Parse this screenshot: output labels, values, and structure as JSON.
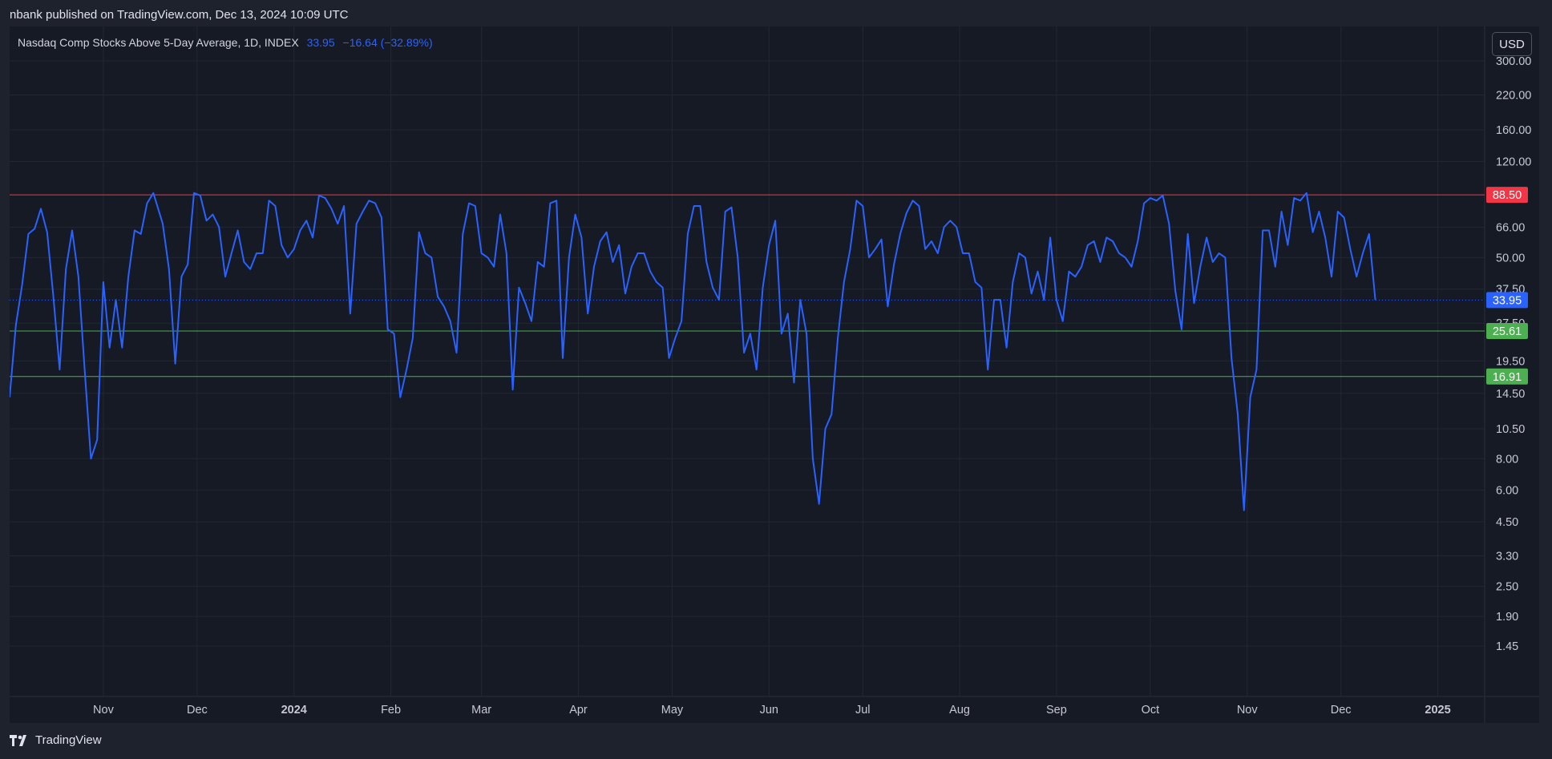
{
  "header": {
    "publish_text": "nbank published on TradingView.com, Dec 13, 2024 10:09 UTC"
  },
  "legend": {
    "symbol": "Nasdaq Comp Stocks Above 5-Day Average, 1D, INDEX",
    "last": "33.95",
    "change": "−16.64 (−32.89%)"
  },
  "currency": "USD",
  "footer": {
    "brand": "TradingView"
  },
  "colors": {
    "line": "#2962ff",
    "upper_level": "#f23645",
    "lower_level": "#4caf50",
    "grid": "#232734",
    "background": "#161a25"
  },
  "chart_data": {
    "type": "line",
    "title": "Nasdaq Comp Stocks Above 5-Day Average, 1D, INDEX",
    "y_scale": "log",
    "ylim": [
      1.1,
      360
    ],
    "xlim": [
      "2023-10-02",
      "2025-01-16"
    ],
    "y_ticks": [
      "300.00",
      "220.00",
      "160.00",
      "120.00",
      "88.50",
      "66.00",
      "50.00",
      "37.50",
      "27.50",
      "19.50",
      "14.50",
      "10.50",
      "8.00",
      "6.00",
      "4.50",
      "3.30",
      "2.50",
      "1.90",
      "1.45"
    ],
    "x_ticks": [
      {
        "date": "2023-11-01",
        "label": "Nov"
      },
      {
        "date": "2023-12-01",
        "label": "Dec"
      },
      {
        "date": "2024-01-01",
        "label": "2024"
      },
      {
        "date": "2024-02-01",
        "label": "Feb"
      },
      {
        "date": "2024-03-01",
        "label": "Mar"
      },
      {
        "date": "2024-04-01",
        "label": "Apr"
      },
      {
        "date": "2024-05-01",
        "label": "May"
      },
      {
        "date": "2024-06-01",
        "label": "Jun"
      },
      {
        "date": "2024-07-01",
        "label": "Jul"
      },
      {
        "date": "2024-08-01",
        "label": "Aug"
      },
      {
        "date": "2024-09-01",
        "label": "Sep"
      },
      {
        "date": "2024-10-01",
        "label": "Oct"
      },
      {
        "date": "2024-11-01",
        "label": "Nov"
      },
      {
        "date": "2024-12-01",
        "label": "Dec"
      },
      {
        "date": "2025-01-01",
        "label": "2025"
      }
    ],
    "horizontal_levels": [
      {
        "value": 88.5,
        "label": "88.50",
        "color": "#f23645"
      },
      {
        "value": 25.61,
        "label": "25.61",
        "color": "#4caf50"
      },
      {
        "value": 16.91,
        "label": "16.91",
        "color": "#4caf50"
      }
    ],
    "last_value": {
      "value": 33.95,
      "label": "33.95",
      "color": "#2962ff"
    },
    "series": [
      {
        "values": [
          [
            "2023-10-02",
            14
          ],
          [
            "2023-10-04",
            27
          ],
          [
            "2023-10-06",
            39
          ],
          [
            "2023-10-08",
            62
          ],
          [
            "2023-10-10",
            65
          ],
          [
            "2023-10-12",
            78
          ],
          [
            "2023-10-14",
            63
          ],
          [
            "2023-10-16",
            35
          ],
          [
            "2023-10-18",
            18
          ],
          [
            "2023-10-20",
            45
          ],
          [
            "2023-10-22",
            64
          ],
          [
            "2023-10-24",
            42
          ],
          [
            "2023-10-26",
            18
          ],
          [
            "2023-10-28",
            8.0
          ],
          [
            "2023-10-30",
            9.5
          ],
          [
            "2023-11-01",
            40
          ],
          [
            "2023-11-03",
            22
          ],
          [
            "2023-11-05",
            34
          ],
          [
            "2023-11-07",
            22
          ],
          [
            "2023-11-09",
            42
          ],
          [
            "2023-11-11",
            64
          ],
          [
            "2023-11-13",
            62
          ],
          [
            "2023-11-15",
            82
          ],
          [
            "2023-11-17",
            90
          ],
          [
            "2023-11-20",
            68
          ],
          [
            "2023-11-22",
            45
          ],
          [
            "2023-11-24",
            19
          ],
          [
            "2023-11-26",
            42
          ],
          [
            "2023-11-28",
            47
          ],
          [
            "2023-11-30",
            90
          ],
          [
            "2023-12-02",
            88
          ],
          [
            "2023-12-04",
            70
          ],
          [
            "2023-12-06",
            74
          ],
          [
            "2023-12-08",
            66
          ],
          [
            "2023-12-10",
            42
          ],
          [
            "2023-12-12",
            52
          ],
          [
            "2023-12-14",
            64
          ],
          [
            "2023-12-16",
            48
          ],
          [
            "2023-12-18",
            45
          ],
          [
            "2023-12-20",
            52
          ],
          [
            "2023-12-22",
            52
          ],
          [
            "2023-12-24",
            84
          ],
          [
            "2023-12-26",
            80
          ],
          [
            "2023-12-28",
            56
          ],
          [
            "2023-12-30",
            50
          ],
          [
            "2024-01-01",
            54
          ],
          [
            "2024-01-03",
            64
          ],
          [
            "2024-01-05",
            70
          ],
          [
            "2024-01-07",
            60
          ],
          [
            "2024-01-09",
            88
          ],
          [
            "2024-01-11",
            86
          ],
          [
            "2024-01-13",
            78
          ],
          [
            "2024-01-15",
            68
          ],
          [
            "2024-01-17",
            80
          ],
          [
            "2024-01-19",
            30
          ],
          [
            "2024-01-21",
            68
          ],
          [
            "2024-01-23",
            76
          ],
          [
            "2024-01-25",
            84
          ],
          [
            "2024-01-27",
            82
          ],
          [
            "2024-01-29",
            72
          ],
          [
            "2024-01-31",
            26
          ],
          [
            "2024-02-02",
            25
          ],
          [
            "2024-02-04",
            14
          ],
          [
            "2024-02-06",
            18
          ],
          [
            "2024-02-08",
            24
          ],
          [
            "2024-02-10",
            63
          ],
          [
            "2024-02-12",
            52
          ],
          [
            "2024-02-14",
            50
          ],
          [
            "2024-02-16",
            35
          ],
          [
            "2024-02-18",
            32
          ],
          [
            "2024-02-20",
            28
          ],
          [
            "2024-02-22",
            21
          ],
          [
            "2024-02-24",
            62
          ],
          [
            "2024-02-26",
            82
          ],
          [
            "2024-02-28",
            80
          ],
          [
            "2024-03-01",
            52
          ],
          [
            "2024-03-03",
            50
          ],
          [
            "2024-03-05",
            46
          ],
          [
            "2024-03-07",
            74
          ],
          [
            "2024-03-09",
            52
          ],
          [
            "2024-03-11",
            15
          ],
          [
            "2024-03-13",
            38
          ],
          [
            "2024-03-15",
            33
          ],
          [
            "2024-03-17",
            28
          ],
          [
            "2024-03-19",
            48
          ],
          [
            "2024-03-21",
            46
          ],
          [
            "2024-03-23",
            82
          ],
          [
            "2024-03-25",
            84
          ],
          [
            "2024-03-27",
            20
          ],
          [
            "2024-03-29",
            50
          ],
          [
            "2024-03-31",
            74
          ],
          [
            "2024-04-02",
            60
          ],
          [
            "2024-04-04",
            30
          ],
          [
            "2024-04-06",
            46
          ],
          [
            "2024-04-08",
            58
          ],
          [
            "2024-04-10",
            63
          ],
          [
            "2024-04-12",
            48
          ],
          [
            "2024-04-14",
            56
          ],
          [
            "2024-04-16",
            36
          ],
          [
            "2024-04-18",
            46
          ],
          [
            "2024-04-20",
            52
          ],
          [
            "2024-04-22",
            52
          ],
          [
            "2024-04-24",
            44
          ],
          [
            "2024-04-26",
            40
          ],
          [
            "2024-04-28",
            38
          ],
          [
            "2024-04-30",
            20
          ],
          [
            "2024-05-02",
            24
          ],
          [
            "2024-05-04",
            28
          ],
          [
            "2024-05-06",
            62
          ],
          [
            "2024-05-08",
            80
          ],
          [
            "2024-05-10",
            80
          ],
          [
            "2024-05-12",
            48
          ],
          [
            "2024-05-14",
            38
          ],
          [
            "2024-05-16",
            34
          ],
          [
            "2024-05-18",
            76
          ],
          [
            "2024-05-20",
            79
          ],
          [
            "2024-05-22",
            50
          ],
          [
            "2024-05-24",
            21
          ],
          [
            "2024-05-26",
            25
          ],
          [
            "2024-05-28",
            18
          ],
          [
            "2024-05-30",
            38
          ],
          [
            "2024-06-01",
            56
          ],
          [
            "2024-06-03",
            70
          ],
          [
            "2024-06-05",
            25
          ],
          [
            "2024-06-07",
            30
          ],
          [
            "2024-06-09",
            16
          ],
          [
            "2024-06-11",
            34
          ],
          [
            "2024-06-13",
            25
          ],
          [
            "2024-06-15",
            8
          ],
          [
            "2024-06-17",
            5.3
          ],
          [
            "2024-06-19",
            10.5
          ],
          [
            "2024-06-21",
            12
          ],
          [
            "2024-06-23",
            24
          ],
          [
            "2024-06-25",
            40
          ],
          [
            "2024-06-27",
            54
          ],
          [
            "2024-06-29",
            84
          ],
          [
            "2024-07-01",
            80
          ],
          [
            "2024-07-03",
            50
          ],
          [
            "2024-07-05",
            54
          ],
          [
            "2024-07-07",
            59
          ],
          [
            "2024-07-09",
            32
          ],
          [
            "2024-07-11",
            47
          ],
          [
            "2024-07-13",
            62
          ],
          [
            "2024-07-15",
            75
          ],
          [
            "2024-07-17",
            84
          ],
          [
            "2024-07-19",
            80
          ],
          [
            "2024-07-21",
            54
          ],
          [
            "2024-07-23",
            58
          ],
          [
            "2024-07-25",
            52
          ],
          [
            "2024-07-27",
            66
          ],
          [
            "2024-07-29",
            70
          ],
          [
            "2024-07-31",
            66
          ],
          [
            "2024-08-02",
            52
          ],
          [
            "2024-08-04",
            52
          ],
          [
            "2024-08-06",
            40
          ],
          [
            "2024-08-08",
            38
          ],
          [
            "2024-08-10",
            18
          ],
          [
            "2024-08-12",
            34
          ],
          [
            "2024-08-14",
            34
          ],
          [
            "2024-08-16",
            22
          ],
          [
            "2024-08-18",
            40
          ],
          [
            "2024-08-20",
            52
          ],
          [
            "2024-08-22",
            50
          ],
          [
            "2024-08-24",
            36
          ],
          [
            "2024-08-26",
            44
          ],
          [
            "2024-08-28",
            34
          ],
          [
            "2024-08-30",
            60
          ],
          [
            "2024-09-01",
            34
          ],
          [
            "2024-09-03",
            28
          ],
          [
            "2024-09-05",
            44
          ],
          [
            "2024-09-07",
            42
          ],
          [
            "2024-09-09",
            46
          ],
          [
            "2024-09-11",
            56
          ],
          [
            "2024-09-13",
            58
          ],
          [
            "2024-09-15",
            48
          ],
          [
            "2024-09-17",
            60
          ],
          [
            "2024-09-19",
            58
          ],
          [
            "2024-09-21",
            52
          ],
          [
            "2024-09-23",
            50
          ],
          [
            "2024-09-25",
            46
          ],
          [
            "2024-09-27",
            58
          ],
          [
            "2024-09-29",
            82
          ],
          [
            "2024-10-01",
            86
          ],
          [
            "2024-10-03",
            84
          ],
          [
            "2024-10-05",
            88
          ],
          [
            "2024-10-07",
            68
          ],
          [
            "2024-10-09",
            37
          ],
          [
            "2024-10-11",
            26
          ],
          [
            "2024-10-13",
            62
          ],
          [
            "2024-10-15",
            33
          ],
          [
            "2024-10-17",
            46
          ],
          [
            "2024-10-19",
            60
          ],
          [
            "2024-10-21",
            48
          ],
          [
            "2024-10-23",
            52
          ],
          [
            "2024-10-25",
            50
          ],
          [
            "2024-10-27",
            20
          ],
          [
            "2024-10-29",
            12
          ],
          [
            "2024-10-31",
            5.0
          ],
          [
            "2024-11-02",
            14
          ],
          [
            "2024-11-04",
            18
          ],
          [
            "2024-11-06",
            64
          ],
          [
            "2024-11-08",
            64
          ],
          [
            "2024-11-10",
            46
          ],
          [
            "2024-11-12",
            76
          ],
          [
            "2024-11-14",
            56
          ],
          [
            "2024-11-16",
            86
          ],
          [
            "2024-11-18",
            84
          ],
          [
            "2024-11-20",
            90
          ],
          [
            "2024-11-22",
            63
          ],
          [
            "2024-11-24",
            76
          ],
          [
            "2024-11-26",
            60
          ],
          [
            "2024-11-28",
            42
          ],
          [
            "2024-11-30",
            76
          ],
          [
            "2024-12-02",
            72
          ],
          [
            "2024-12-04",
            54
          ],
          [
            "2024-12-06",
            42
          ],
          [
            "2024-12-08",
            52
          ],
          [
            "2024-12-10",
            62
          ],
          [
            "2024-12-12",
            33.95
          ]
        ]
      }
    ]
  }
}
